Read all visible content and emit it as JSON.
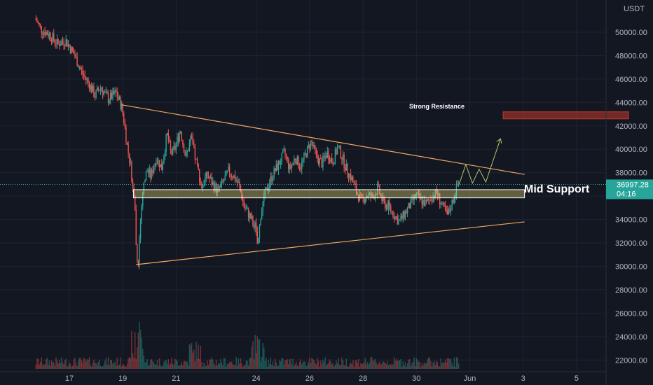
{
  "chart_data": {
    "type": "candlestick",
    "currency": "USDT",
    "y_range": [
      21000,
      52000
    ],
    "y_ticks": [
      22000,
      24000,
      26000,
      28000,
      30000,
      32000,
      34000,
      36000,
      38000,
      40000,
      42000,
      44000,
      46000,
      48000,
      50000
    ],
    "y_tick_labels": [
      "22000.00",
      "24000.00",
      "26000.00",
      "28000.00",
      "30000.00",
      "32000.00",
      "34000.00",
      "36000.00",
      "38000.00",
      "40000.00",
      "42000.00",
      "44000.00",
      "46000.00",
      "48000.00",
      "50000.00"
    ],
    "x_range": [
      15.75,
      6.9
    ],
    "x_ticks": [
      {
        "label": "17",
        "day": 17
      },
      {
        "label": "19",
        "day": 19
      },
      {
        "label": "21",
        "day": 21
      },
      {
        "label": "24",
        "day": 24
      },
      {
        "label": "26",
        "day": 26
      },
      {
        "label": "28",
        "day": 28
      },
      {
        "label": "30",
        "day": 30
      },
      {
        "label": "Jun",
        "day": 32
      },
      {
        "label": "3",
        "day": 34
      },
      {
        "label": "5",
        "day": 36
      }
    ],
    "last_price": {
      "value": 36997.28,
      "label": "36997.28",
      "countdown": "04:16"
    },
    "colors": {
      "up": "#26a69a",
      "down": "#ef5350",
      "trendline": "#f0a860",
      "support": "#fff59d",
      "resistance": "#c1392b",
      "projection": "#b5c26b",
      "background": "#131722"
    },
    "price_path": [
      [
        15.75,
        51200
      ],
      [
        16.0,
        50200
      ],
      [
        16.3,
        49800
      ],
      [
        16.6,
        49000
      ],
      [
        16.9,
        49300
      ],
      [
        17.2,
        48200
      ],
      [
        17.5,
        46600
      ],
      [
        17.8,
        45500
      ],
      [
        18.0,
        44600
      ],
      [
        18.2,
        45300
      ],
      [
        18.5,
        44300
      ],
      [
        18.8,
        44800
      ],
      [
        19.0,
        43600
      ],
      [
        19.1,
        42300
      ],
      [
        19.2,
        40400
      ],
      [
        19.35,
        38400
      ],
      [
        19.5,
        35000
      ],
      [
        19.55,
        31200
      ],
      [
        19.62,
        30200
      ],
      [
        19.7,
        33800
      ],
      [
        19.8,
        36600
      ],
      [
        19.95,
        38200
      ],
      [
        20.1,
        37700
      ],
      [
        20.3,
        39300
      ],
      [
        20.5,
        38400
      ],
      [
        20.7,
        41300
      ],
      [
        20.85,
        39600
      ],
      [
        21.0,
        40100
      ],
      [
        21.2,
        41700
      ],
      [
        21.4,
        39300
      ],
      [
        21.6,
        40900
      ],
      [
        21.8,
        38800
      ],
      [
        22.0,
        36800
      ],
      [
        22.2,
        37800
      ],
      [
        22.4,
        37100
      ],
      [
        22.6,
        36400
      ],
      [
        22.8,
        37200
      ],
      [
        23.0,
        38100
      ],
      [
        23.2,
        37700
      ],
      [
        23.4,
        36900
      ],
      [
        23.6,
        35000
      ],
      [
        23.8,
        34300
      ],
      [
        24.0,
        33400
      ],
      [
        24.1,
        31600
      ],
      [
        24.2,
        34300
      ],
      [
        24.35,
        36000
      ],
      [
        24.5,
        37000
      ],
      [
        24.7,
        38000
      ],
      [
        24.9,
        38800
      ],
      [
        25.1,
        39700
      ],
      [
        25.3,
        38300
      ],
      [
        25.5,
        39300
      ],
      [
        25.7,
        38500
      ],
      [
        25.9,
        39600
      ],
      [
        26.1,
        40700
      ],
      [
        26.3,
        39300
      ],
      [
        26.5,
        38800
      ],
      [
        26.7,
        39700
      ],
      [
        26.9,
        38900
      ],
      [
        27.1,
        40200
      ],
      [
        27.2,
        39700
      ],
      [
        27.4,
        38400
      ],
      [
        27.6,
        37600
      ],
      [
        27.8,
        36300
      ],
      [
        28.0,
        35600
      ],
      [
        28.2,
        36100
      ],
      [
        28.4,
        35900
      ],
      [
        28.6,
        36700
      ],
      [
        28.8,
        35400
      ],
      [
        29.0,
        35100
      ],
      [
        29.2,
        34400
      ],
      [
        29.4,
        33800
      ],
      [
        29.6,
        34500
      ],
      [
        29.8,
        35200
      ],
      [
        30.0,
        36000
      ],
      [
        30.2,
        35700
      ],
      [
        30.4,
        35300
      ],
      [
        30.6,
        35900
      ],
      [
        30.8,
        36300
      ],
      [
        31.0,
        35200
      ],
      [
        31.2,
        34300
      ],
      [
        31.35,
        35200
      ],
      [
        31.5,
        36400
      ],
      [
        31.6,
        36997
      ]
    ]
  },
  "annotations": {
    "strong_resistance": {
      "label": "Strong Resistance",
      "y_low": 42600,
      "y_high": 43200,
      "x_start": 33.25,
      "x_end": 37.95
    },
    "mid_support": {
      "label": "Mid Support",
      "y_low": 35850,
      "y_high": 36550,
      "x_start": 19.4,
      "x_end": 34.05
    },
    "upper_trendline": {
      "from": [
        18.95,
        43800
      ],
      "to": [
        34.05,
        37850
      ]
    },
    "lower_trendline": {
      "from": [
        19.5,
        30150
      ],
      "to": [
        34.05,
        33800
      ]
    },
    "projection_path": [
      [
        31.6,
        37000
      ],
      [
        31.85,
        38700
      ],
      [
        32.1,
        37100
      ],
      [
        32.35,
        38300
      ],
      [
        32.6,
        37200
      ],
      [
        33.15,
        40900
      ]
    ]
  }
}
